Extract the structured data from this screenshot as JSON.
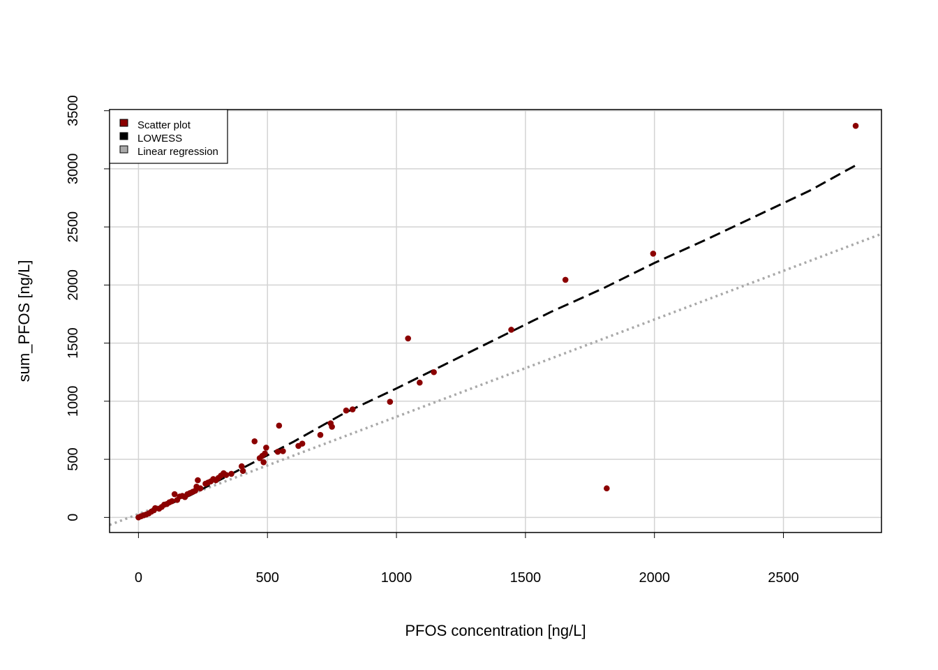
{
  "chart_data": {
    "type": "scatter",
    "title": "",
    "xlabel": "PFOS concentration [ng/L]",
    "ylabel": "sum_PFOS [ng/L]",
    "xlim": [
      -112,
      2880
    ],
    "ylim": [
      -130,
      3510
    ],
    "x_ticks": [
      0,
      500,
      1000,
      1500,
      2000,
      2500
    ],
    "y_ticks": [
      0,
      500,
      1000,
      1500,
      2000,
      2500,
      3000,
      3500
    ],
    "grid": true,
    "legend_position": "top-left",
    "legend": [
      {
        "label": "Scatter plot",
        "color": "#8b0000"
      },
      {
        "label": "LOWESS",
        "color": "#000000"
      },
      {
        "label": "Linear regression",
        "color": "#a9a9a9"
      }
    ],
    "colors": {
      "points": "#8b0000",
      "lowess": "#000000",
      "regression": "#a9a9a9",
      "grid": "#d3d3d3"
    },
    "series": [
      {
        "name": "Scatter plot",
        "points": [
          [
            0,
            0
          ],
          [
            10,
            10
          ],
          [
            20,
            18
          ],
          [
            30,
            25
          ],
          [
            40,
            35
          ],
          [
            50,
            50
          ],
          [
            60,
            62
          ],
          [
            65,
            80
          ],
          [
            80,
            75
          ],
          [
            90,
            90
          ],
          [
            100,
            110
          ],
          [
            110,
            115
          ],
          [
            120,
            130
          ],
          [
            130,
            140
          ],
          [
            140,
            200
          ],
          [
            150,
            150
          ],
          [
            160,
            180
          ],
          [
            170,
            185
          ],
          [
            180,
            175
          ],
          [
            190,
            200
          ],
          [
            200,
            210
          ],
          [
            210,
            220
          ],
          [
            220,
            230
          ],
          [
            225,
            265
          ],
          [
            230,
            320
          ],
          [
            240,
            250
          ],
          [
            260,
            290
          ],
          [
            270,
            300
          ],
          [
            280,
            310
          ],
          [
            290,
            330
          ],
          [
            300,
            320
          ],
          [
            310,
            340
          ],
          [
            320,
            360
          ],
          [
            330,
            380
          ],
          [
            340,
            365
          ],
          [
            360,
            375
          ],
          [
            400,
            440
          ],
          [
            405,
            400
          ],
          [
            450,
            655
          ],
          [
            470,
            510
          ],
          [
            480,
            530
          ],
          [
            490,
            550
          ],
          [
            495,
            600
          ],
          [
            485,
            475
          ],
          [
            540,
            565
          ],
          [
            545,
            790
          ],
          [
            560,
            570
          ],
          [
            620,
            615
          ],
          [
            635,
            635
          ],
          [
            705,
            710
          ],
          [
            745,
            810
          ],
          [
            750,
            780
          ],
          [
            805,
            920
          ],
          [
            830,
            930
          ],
          [
            975,
            995
          ],
          [
            1045,
            1540
          ],
          [
            1090,
            1160
          ],
          [
            1145,
            1250
          ],
          [
            1445,
            1615
          ],
          [
            1655,
            2045
          ],
          [
            1815,
            250
          ],
          [
            1995,
            2270
          ],
          [
            2780,
            3370
          ]
        ]
      },
      {
        "name": "LOWESS",
        "points": [
          [
            0,
            0
          ],
          [
            200,
            190
          ],
          [
            400,
            420
          ],
          [
            600,
            650
          ],
          [
            800,
            900
          ],
          [
            1000,
            1110
          ],
          [
            1200,
            1330
          ],
          [
            1400,
            1550
          ],
          [
            1600,
            1770
          ],
          [
            1800,
            1970
          ],
          [
            2000,
            2190
          ],
          [
            2200,
            2390
          ],
          [
            2400,
            2600
          ],
          [
            2600,
            2810
          ],
          [
            2780,
            3030
          ]
        ]
      },
      {
        "name": "Linear regression",
        "points": [
          [
            -112,
            -65
          ],
          [
            2880,
            2440
          ]
        ]
      }
    ]
  }
}
